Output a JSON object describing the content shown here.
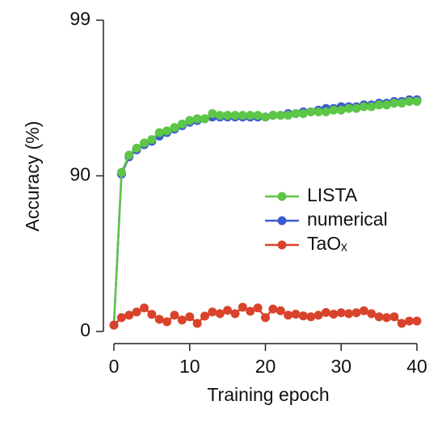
{
  "chart_data": {
    "type": "line",
    "xlabel": "Training epoch",
    "ylabel": "Accuracy (%)",
    "x": [
      0,
      1,
      2,
      3,
      4,
      5,
      6,
      7,
      8,
      9,
      10,
      11,
      12,
      13,
      14,
      15,
      16,
      17,
      18,
      19,
      20,
      21,
      22,
      23,
      24,
      25,
      26,
      27,
      28,
      29,
      30,
      31,
      32,
      33,
      34,
      35,
      36,
      37,
      38,
      39,
      40
    ],
    "xlim": [
      0,
      40
    ],
    "xticks": [
      0,
      10,
      20,
      30,
      40
    ],
    "ylim": [
      0,
      99
    ],
    "yticks": [
      0,
      90,
      99
    ],
    "yscale": "piecewise",
    "legend": "right",
    "series": [
      {
        "name": "numerical",
        "color": "#3f5bd0",
        "values": [
          3.7,
          90.1,
          91.1,
          91.5,
          91.8,
          92.0,
          92.3,
          92.5,
          92.7,
          92.9,
          93.1,
          93.2,
          93.3,
          93.4,
          93.4,
          93.4,
          93.4,
          93.4,
          93.4,
          93.4,
          93.4,
          93.5,
          93.5,
          93.6,
          93.6,
          93.7,
          93.7,
          93.8,
          93.9,
          93.9,
          94.0,
          94.0,
          94.0,
          94.1,
          94.1,
          94.2,
          94.2,
          94.3,
          94.3,
          94.4,
          94.4
        ]
      },
      {
        "name": "LISTA",
        "color": "#5cc646",
        "values": [
          3.7,
          90.2,
          91.2,
          91.6,
          91.9,
          92.1,
          92.5,
          92.6,
          92.8,
          93.0,
          93.2,
          93.3,
          93.3,
          93.6,
          93.5,
          93.5,
          93.5,
          93.5,
          93.5,
          93.5,
          93.4,
          93.5,
          93.5,
          93.5,
          93.6,
          93.6,
          93.7,
          93.7,
          93.7,
          93.8,
          93.8,
          93.9,
          93.9,
          94.0,
          94.0,
          94.1,
          94.1,
          94.2,
          94.2,
          94.3,
          94.3
        ]
      },
      {
        "name": "TaOₓ",
        "color": "#d9432b",
        "values": [
          3.7,
          8.0,
          9.4,
          11.3,
          13.6,
          9.9,
          7.0,
          5.6,
          9.4,
          6.6,
          8.5,
          4.7,
          8.9,
          11.3,
          10.3,
          12.2,
          10.3,
          14.0,
          11.7,
          13.6,
          8.0,
          13.0,
          12.0,
          9.4,
          10.0,
          9.0,
          8.5,
          9.4,
          11.0,
          10.0,
          10.8,
          10.3,
          10.8,
          12.0,
          10.3,
          8.5,
          8.0,
          8.5,
          4.7,
          6.0,
          6.0
        ]
      }
    ]
  }
}
